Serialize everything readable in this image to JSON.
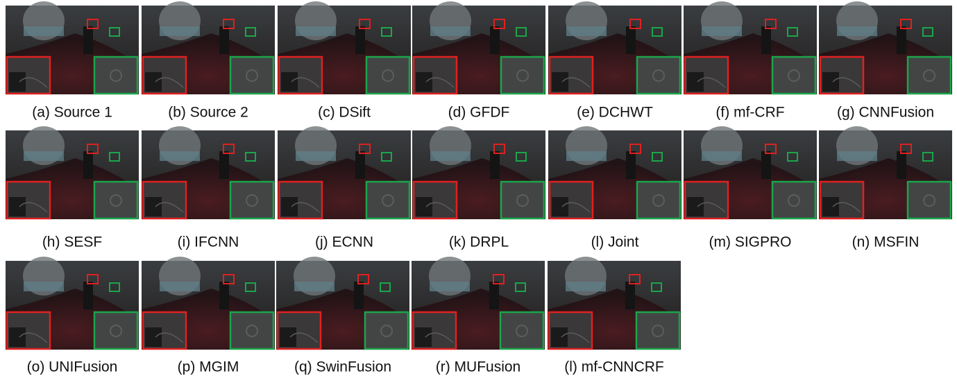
{
  "figure": {
    "panels": [
      {
        "caption": "(a) Source 1"
      },
      {
        "caption": "(b) Source 2"
      },
      {
        "caption": "(c) DSift"
      },
      {
        "caption": "(d) GFDF"
      },
      {
        "caption": "(e) DCHWT"
      },
      {
        "caption": "(f) mf-CRF"
      },
      {
        "caption": "(g) CNNFusion"
      },
      {
        "caption": "(h) SESF"
      },
      {
        "caption": "(i) IFCNN"
      },
      {
        "caption": "(j) ECNN"
      },
      {
        "caption": "(k) DRPL"
      },
      {
        "caption": "(l) Joint"
      },
      {
        "caption": "(m) SIGPRO"
      },
      {
        "caption": "(n) MSFIN"
      },
      {
        "caption": "(o) UNIFusion"
      },
      {
        "caption": "(p) MGIM"
      },
      {
        "caption": "(q) SwinFusion"
      },
      {
        "caption": "(r) MUFusion"
      },
      {
        "caption": "(l) mf-CNNCRF"
      }
    ]
  }
}
